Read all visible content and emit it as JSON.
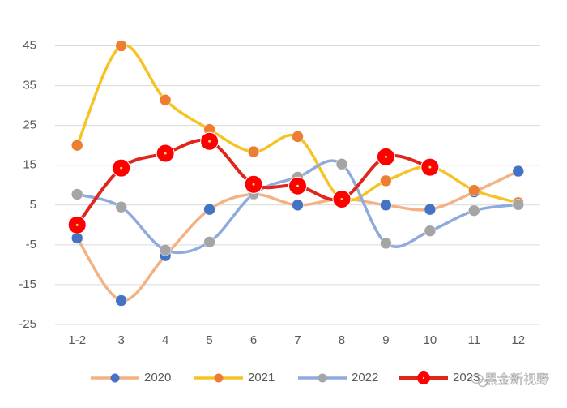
{
  "chart_data": {
    "type": "line",
    "title": "",
    "xlabel": "",
    "ylabel": "",
    "categories": [
      "1-2",
      "3",
      "4",
      "5",
      "6",
      "7",
      "8",
      "9",
      "10",
      "11",
      "12"
    ],
    "yticks": [
      45,
      35,
      25,
      15,
      5,
      -5,
      -15,
      -25
    ],
    "ylim": [
      -25,
      50
    ],
    "grid": true,
    "legend_position": "bottom",
    "series": [
      {
        "name": "2020",
        "color": "#4472C4",
        "line_color": "#F4B183",
        "values": [
          -3.3,
          -19,
          -7.7,
          3.9,
          7.7,
          5,
          6.6,
          5,
          3.9,
          8.3,
          13.5
        ]
      },
      {
        "name": "2021",
        "color": "#ED7D31",
        "line_color": "#F6C325",
        "values": [
          20,
          45,
          31.4,
          24,
          18.4,
          22.2,
          6.5,
          11.1,
          14.6,
          8.7,
          5.6
        ]
      },
      {
        "name": "2022",
        "color": "#A5A5A5",
        "line_color": "#8FAADC",
        "values": [
          7.7,
          4.5,
          -6.3,
          -4.3,
          7.8,
          12,
          15.3,
          -4.6,
          -1.5,
          3.6,
          5.1
        ]
      },
      {
        "name": "2023",
        "color": "#FF0000",
        "line_color": "#E0261A",
        "values": [
          0,
          14.3,
          18,
          21,
          10.2,
          9.8,
          6.5,
          17.1,
          14.5,
          null,
          null
        ]
      }
    ]
  },
  "watermark": "黑金新视野"
}
